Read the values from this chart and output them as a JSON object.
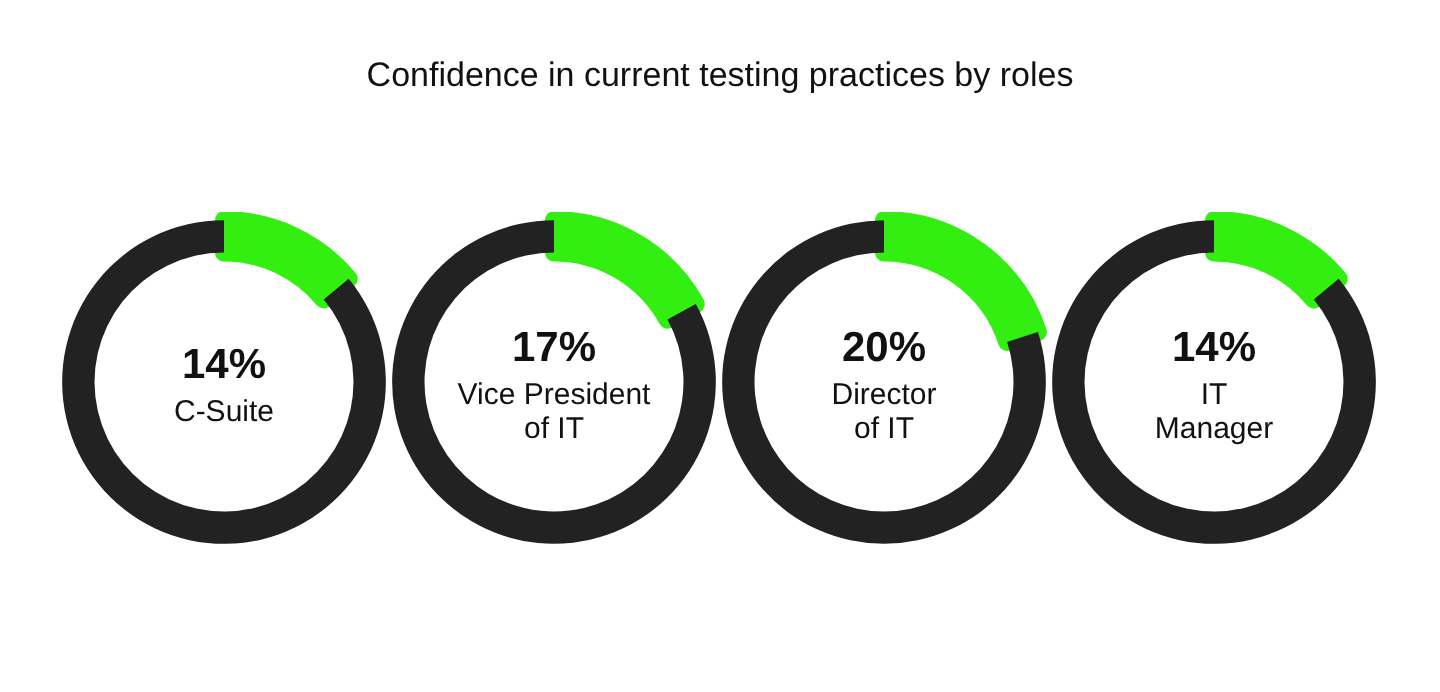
{
  "chart_data": [
    {
      "type": "donut",
      "title": "Confidence in current testing practices by roles",
      "categories": [
        "C-Suite",
        null
      ],
      "values": [
        14,
        86
      ],
      "colors": [
        "#33ee11",
        "#222222"
      ],
      "value_labels": [
        "14%",
        null
      ]
    },
    {
      "type": "donut",
      "categories": [
        "Vice President of IT",
        null
      ],
      "values": [
        17,
        83
      ],
      "colors": [
        "#33ee11",
        "#222222"
      ],
      "value_labels": [
        "17%",
        null
      ]
    },
    {
      "type": "donut",
      "categories": [
        "Director of IT",
        null
      ],
      "values": [
        20,
        80
      ],
      "colors": [
        "#33ee11",
        "#222222"
      ],
      "value_labels": [
        "20%",
        null
      ]
    },
    {
      "type": "donut",
      "categories": [
        "IT Manager",
        null
      ],
      "values": [
        14,
        86
      ],
      "colors": [
        "#33ee11",
        "#222222"
      ],
      "value_labels": [
        "14%",
        null
      ]
    }
  ]
}
